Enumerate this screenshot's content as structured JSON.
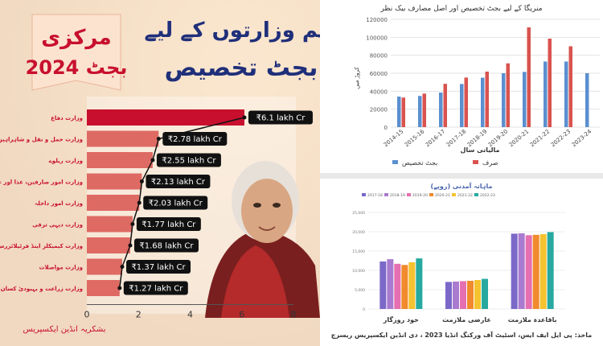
{
  "left": {
    "heading_line1": "اہم وزارتوں کے لیے",
    "heading_line2": "بجٹ تخصیص",
    "badge_line1": "مرکزی",
    "badge_line2": "بجٹ 2024",
    "credit": "بشکریہ انڈین ایکسپریس",
    "accent": "#c8102e",
    "bar_color": "#d9534f"
  },
  "topright": {
    "title": "منریگا کے لیے بجٹ تخصیص اور اصل مصارف بیک نظر",
    "ylabel": "کروڑ میں",
    "xlabel": "مالیاتی سال",
    "legend_spent": "صرف",
    "legend_alloc": "بجٹ تخصیص",
    "color_alloc": "#5b8fd0",
    "color_spent": "#d9534f"
  },
  "botright": {
    "title": "ماہانہ آمدنی (روپے)",
    "source": "ماخذ: پی ایل ایف ایس، اسٹیٹ آف ورکنگ انڈیا 2023 ، دی انڈین ایکسپریس ریسرچ",
    "colors": [
      "#7b68c8",
      "#a97bd0",
      "#e56fb0",
      "#f08a2c",
      "#f5c230",
      "#27a9a0"
    ]
  },
  "chart_data": [
    {
      "type": "bar",
      "orientation": "horizontal",
      "categories": [
        "وزارت دفاع",
        "وزارت حمل و نقل و شاہراہیں",
        "وزارت ریلوے",
        "وزارت امور صارفین، غذا اور عوامی نظام تقسیم",
        "وزارت امور داخلہ",
        "وزارت دیہی ترقی",
        "وزارت کیمیکلز اینڈ فرٹیلائزرس",
        "وزارت مواصلات",
        "وزارت زراعت و بہبودیٔ کسان"
      ],
      "values": [
        6.1,
        2.78,
        2.55,
        2.13,
        2.03,
        1.77,
        1.68,
        1.37,
        1.27
      ],
      "labels": [
        "₹6.1 lakh Cr",
        "₹2.78 lakh Cr",
        "₹2.55 lakh Cr",
        "₹2.13 lakh Cr",
        "₹2.03 lakh Cr",
        "₹1.77 lakh Cr",
        "₹1.68 lakh Cr",
        "₹1.37 lakh Cr",
        "₹1.27 lakh Cr"
      ],
      "xticks": [
        "0",
        "2",
        "4",
        "6",
        "8"
      ],
      "xlim": [
        0,
        8
      ]
    },
    {
      "type": "bar",
      "categories": [
        "2014-15",
        "2015-16",
        "2016-17",
        "2017-18",
        "2018-19",
        "2019-20",
        "2020-21",
        "2021-22",
        "2022-23",
        "2023-24"
      ],
      "series": [
        {
          "name": "بجٹ تخصیص",
          "values": [
            34000,
            34700,
            38500,
            48000,
            55000,
            60000,
            61500,
            73000,
            73000,
            60000
          ]
        },
        {
          "name": "صرف",
          "values": [
            32900,
            37300,
            48200,
            55200,
            61800,
            71000,
            111000,
            98500,
            90000,
            null
          ]
        }
      ],
      "ylim": [
        0,
        120000
      ],
      "yticks": [
        "0",
        "20000",
        "40000",
        "60000",
        "80000",
        "100000",
        "120000"
      ]
    },
    {
      "type": "bar",
      "categories": [
        "خود روزگار",
        "عارضی ملازمت",
        "باقاعدہ ملازمت"
      ],
      "series": [
        {
          "name": "2017-18",
          "values": [
            12300,
            7000,
            19500
          ]
        },
        {
          "name": "2018-19",
          "values": [
            12900,
            7100,
            19600
          ]
        },
        {
          "name": "2019-20",
          "values": [
            11700,
            7200,
            19100
          ]
        },
        {
          "name": "2020-21",
          "values": [
            11400,
            7300,
            19200
          ]
        },
        {
          "name": "2021-22",
          "values": [
            12100,
            7500,
            19400
          ]
        },
        {
          "name": "2022-23",
          "values": [
            13100,
            7800,
            19900
          ]
        }
      ],
      "ylim": [
        0,
        25000
      ],
      "yticks": [
        "0",
        "5,000",
        "10,000",
        "15,000",
        "20,000",
        "25,000"
      ]
    }
  ]
}
